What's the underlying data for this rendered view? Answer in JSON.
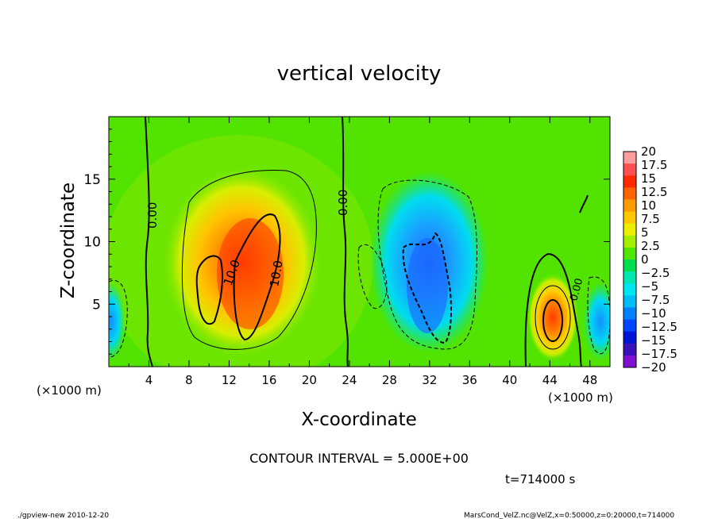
{
  "chart_data": {
    "type": "heatmap",
    "title": "vertical velocity",
    "xlabel": "X-coordinate",
    "ylabel": "Z-coordinate",
    "x_unit_label": "(×1000 m)",
    "z_unit_label": "(×1000 m)",
    "xlim": [
      0,
      50
    ],
    "ylim": [
      0,
      20
    ],
    "x_ticks": [
      "4",
      "8",
      "12",
      "16",
      "20",
      "24",
      "28",
      "32",
      "36",
      "40",
      "44",
      "48"
    ],
    "y_ticks": [
      "5",
      "10",
      "15"
    ],
    "colorbar_labels": [
      "20",
      "17.5",
      "15",
      "12.5",
      "10",
      "7.5",
      "5",
      "2.5",
      "0",
      "−2.5",
      "−5",
      "−7.5",
      "−10",
      "−12.5",
      "−15",
      "−17.5",
      "−20"
    ],
    "colorbar_colors": [
      "#ff9c9c",
      "#ff5050",
      "#ff2a00",
      "#ff6400",
      "#ff9a00",
      "#ffc800",
      "#ecf000",
      "#a6ee00",
      "#4fe600",
      "#00e04f",
      "#00e8b0",
      "#00e6f0",
      "#00bdf8",
      "#0082ff",
      "#0046ff",
      "#0014d6",
      "#3a10b8",
      "#8010d0"
    ],
    "contour_labels": [
      "0.00",
      "0.00",
      "10.0",
      "10.0",
      "0.00"
    ],
    "contour_interval_text": "CONTOUR INTERVAL = 5.000E+00",
    "time_text": "t=714000 s",
    "features": [
      {
        "kind": "updraft",
        "x": 12.5,
        "z": 7,
        "w_max": 12.5
      },
      {
        "kind": "downdraft",
        "x": 33,
        "z": 6,
        "w_min": -12.5
      },
      {
        "kind": "updraft",
        "x": 44,
        "z": 3.5,
        "w_max": 11
      },
      {
        "kind": "downdraft",
        "x": 48.5,
        "z": 3.5,
        "w_min": -8
      }
    ]
  },
  "footer": {
    "left": "./gpview-new  2010-12-20",
    "right": "MarsCond_VelZ.nc@VelZ,x=0:50000,z=0:20000,t=714000"
  }
}
